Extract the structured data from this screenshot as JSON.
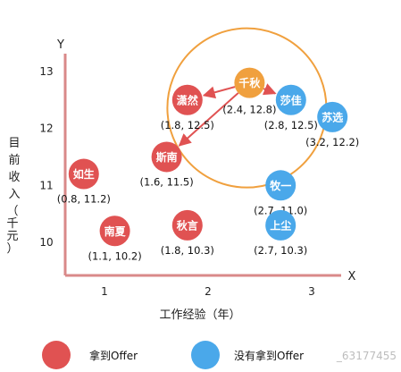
{
  "chart_data": {
    "type": "scatter",
    "xlabel": "工作经验（年）",
    "ylabel": "目前收入（千元）",
    "x_axis_letter": "X",
    "y_axis_letter": "Y",
    "xlim": [
      0.6,
      3.4
    ],
    "ylim": [
      9.7,
      13.2
    ],
    "x_ticks": [
      "1",
      "2",
      "3"
    ],
    "y_ticks": [
      "10",
      "11",
      "12",
      "13"
    ],
    "points": [
      {
        "name": "潇然",
        "label": "(1.8, 12.5)",
        "x": 1.8,
        "y": 12.5,
        "status": "offer"
      },
      {
        "name": "斯南",
        "label": "(1.6, 11.5)",
        "x": 1.6,
        "y": 11.5,
        "status": "offer"
      },
      {
        "name": "如生",
        "label": "(0.8, 11.2)",
        "x": 0.8,
        "y": 11.2,
        "status": "offer"
      },
      {
        "name": "南夏",
        "label": "(1.1, 10.2)",
        "x": 1.1,
        "y": 10.2,
        "status": "offer"
      },
      {
        "name": "秋言",
        "label": "(1.8, 10.3)",
        "x": 1.8,
        "y": 10.3,
        "status": "offer"
      },
      {
        "name": "千秋",
        "label": "(2.4, 12.8)",
        "x": 2.4,
        "y": 12.8,
        "status": "query"
      },
      {
        "name": "莎佳",
        "label": "(2.8, 12.5)",
        "x": 2.8,
        "y": 12.5,
        "status": "no_offer"
      },
      {
        "name": "苏选",
        "label": "(3.2, 12.2)",
        "x": 3.2,
        "y": 12.2,
        "status": "no_offer"
      },
      {
        "name": "牧一",
        "label": "(2.7, 11.0)",
        "x": 2.7,
        "y": 11.0,
        "status": "no_offer"
      },
      {
        "name": "上尘",
        "label": "(2.7, 10.3)",
        "x": 2.7,
        "y": 10.3,
        "status": "no_offer"
      }
    ],
    "arrows_from": "千秋",
    "arrows_to": [
      "潇然",
      "斯南",
      "莎佳"
    ],
    "legend": [
      {
        "label": "拿到Offer",
        "status": "offer"
      },
      {
        "label": "没有拿到Offer",
        "status": "no_offer"
      }
    ],
    "colors": {
      "offer": "#e05252",
      "no_offer": "#4aa8ea",
      "query": "#f0a03e",
      "axis": "#d98989",
      "circle": "#f0a03e",
      "arrow": "#e05252"
    },
    "watermark": "_63177455"
  }
}
